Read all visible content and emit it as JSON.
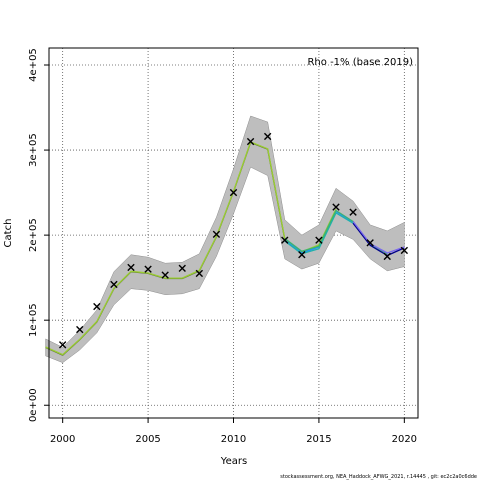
{
  "chart_data": {
    "type": "line",
    "title": "",
    "xlabel": "Years",
    "ylabel": "Catch",
    "xlim": [
      1999.2,
      2020.8
    ],
    "ylim": [
      -15000,
      420000
    ],
    "x_ticks": [
      2000,
      2005,
      2010,
      2015,
      2020
    ],
    "x_tick_labels": [
      "2000",
      "2005",
      "2010",
      "2015",
      "2020"
    ],
    "y_ticks": [
      0,
      100000,
      200000,
      300000,
      400000
    ],
    "y_tick_labels": [
      "0e+00",
      "1e+05",
      "2e+05",
      "3e+05",
      "4e+05"
    ],
    "grid": true,
    "annotation": "Rho -1% (base 2019)",
    "footer": "stockassessment.org,  NEA_Haddock_AFWG_2021,  r.14445 ,  git:  ec2c2a0c6dde",
    "colors": {
      "band": "#bebebe",
      "band_edge": "#8c8c8c",
      "grid": "#555555",
      "observation": "#000000"
    },
    "band": {
      "x": [
        1999,
        2000,
        2001,
        2002,
        2003,
        2004,
        2005,
        2006,
        2007,
        2008,
        2009,
        2010,
        2011,
        2012,
        2013,
        2014,
        2015,
        2016,
        2017,
        2018,
        2019,
        2020
      ],
      "lower": [
        58000,
        50000,
        65000,
        85000,
        118000,
        137000,
        135000,
        130000,
        131000,
        137000,
        175000,
        225000,
        280000,
        270000,
        172000,
        160000,
        167000,
        205000,
        195000,
        172000,
        158000,
        163000
      ],
      "upper": [
        78000,
        68000,
        88000,
        112000,
        157000,
        177000,
        174000,
        167000,
        168000,
        178000,
        221000,
        278000,
        340000,
        333000,
        218000,
        200000,
        212000,
        255000,
        240000,
        212000,
        205000,
        215000
      ]
    },
    "series": [
      {
        "color": "#556b2f",
        "x": [
          1999,
          2000,
          2001,
          2002,
          2003,
          2004,
          2005,
          2006,
          2007,
          2008,
          2009,
          2010,
          2011,
          2012,
          2013,
          2014,
          2015,
          2016
        ],
        "values": [
          68000,
          59000,
          77000,
          98000,
          137000,
          157000,
          155000,
          149000,
          149000,
          158000,
          198000,
          251000,
          309000,
          301000,
          195000,
          180000,
          188000,
          230000
        ]
      },
      {
        "color": "#9acd32",
        "x": [
          1999,
          2000,
          2001,
          2002,
          2003,
          2004,
          2005,
          2006,
          2007,
          2008,
          2009,
          2010,
          2011,
          2012,
          2013,
          2014,
          2015,
          2016
        ],
        "values": [
          68500,
          59500,
          77500,
          98500,
          137500,
          157500,
          155500,
          149500,
          149500,
          158500,
          198500,
          251500,
          309500,
          301500,
          195500,
          180500,
          188500,
          230500
        ]
      },
      {
        "color": "#1e90ff",
        "x": [
          2013,
          2014,
          2015,
          2016,
          2017
        ],
        "values": [
          194000,
          179000,
          186000,
          228000,
          215000
        ]
      },
      {
        "color": "#20b2aa",
        "x": [
          2013,
          2014,
          2015,
          2016,
          2017,
          2018
        ],
        "values": [
          193000,
          178000,
          184000,
          226000,
          214000,
          190000
        ]
      },
      {
        "color": "#3cb371",
        "x": [
          2013,
          2014,
          2015,
          2016,
          2017,
          2018,
          2019
        ],
        "values": [
          196000,
          181000,
          187000,
          229000,
          216000,
          189000,
          178000
        ]
      },
      {
        "color": "#00008b",
        "x": [
          2017,
          2018,
          2019,
          2020
        ],
        "values": [
          214000,
          188000,
          176000,
          185000
        ]
      },
      {
        "color": "#7b68ee",
        "x": [
          2017,
          2018,
          2019,
          2020
        ],
        "values": [
          216000,
          190000,
          179000,
          186000
        ]
      }
    ],
    "observations": {
      "x": [
        2000,
        2001,
        2002,
        2003,
        2004,
        2005,
        2006,
        2007,
        2008,
        2009,
        2010,
        2011,
        2012,
        2013,
        2014,
        2015,
        2016,
        2017,
        2018,
        2019,
        2020
      ],
      "values": [
        71000,
        89000,
        116000,
        142000,
        162000,
        160000,
        153000,
        161000,
        155000,
        201000,
        250000,
        310000,
        316000,
        194000,
        177000,
        194000,
        233000,
        227000,
        191000,
        175000,
        182000
      ]
    }
  }
}
